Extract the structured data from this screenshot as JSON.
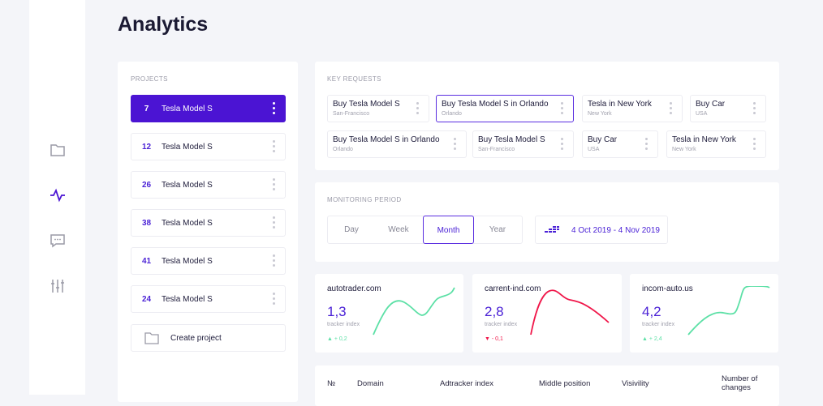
{
  "title": "Analytics",
  "sidebar": {
    "icons": [
      "folder-icon",
      "activity-icon",
      "chat-icon",
      "sliders-icon"
    ],
    "active": "activity-icon",
    "accent": "#4b14d3"
  },
  "projects": {
    "label": "PROJECTS",
    "items": [
      {
        "num": "7",
        "name": "Tesla Model S",
        "active": true
      },
      {
        "num": "12",
        "name": "Tesla Model S"
      },
      {
        "num": "26",
        "name": "Tesla Model S"
      },
      {
        "num": "38",
        "name": "Tesla Model S"
      },
      {
        "num": "41",
        "name": "Tesla Model S"
      },
      {
        "num": "24",
        "name": "Tesla Model S"
      }
    ],
    "create": "Create project"
  },
  "key_requests": {
    "label": "KEY REQUESTS",
    "items": [
      {
        "title": "Buy Tesla Model S",
        "sub": "San-Francisco"
      },
      {
        "title": "Buy Tesla Model S in Orlando",
        "sub": "Orlando",
        "selected": true
      },
      {
        "title": "Tesla in New York",
        "sub": "New York"
      },
      {
        "title": "Buy Car",
        "sub": "USA"
      },
      {
        "title": "Buy Tesla Model S in Orlando",
        "sub": "Orlando"
      },
      {
        "title": "Buy Tesla Model S",
        "sub": "San-Francisco"
      },
      {
        "title": "Buy Car",
        "sub": "USA"
      },
      {
        "title": "Tesla in New York",
        "sub": "New York"
      }
    ]
  },
  "period": {
    "label": "MONITORING PERIOD",
    "options": [
      "Day",
      "Week",
      "Month",
      "Year"
    ],
    "selected": "Month",
    "date_range": "4 Oct 2019 - 4 Nov 2019"
  },
  "stats": [
    {
      "domain": "autotrader.com",
      "value": "1,3",
      "caption": "tracker index",
      "change": "▲ + 0,2",
      "color": "#5ce0a6"
    },
    {
      "domain": "carrent-ind.com",
      "value": "2,8",
      "caption": "tracker index",
      "change": "▼ - 0,1",
      "color": "#f0174a"
    },
    {
      "domain": "incom-auto.us",
      "value": "4,2",
      "caption": "tracker index",
      "change": "▲ + 2,4",
      "color": "#5ce0a6"
    }
  ],
  "table": {
    "headers": [
      "№",
      "Domain",
      "Adtracker index",
      "Middle position",
      "Visivility",
      "Number of changes"
    ]
  }
}
